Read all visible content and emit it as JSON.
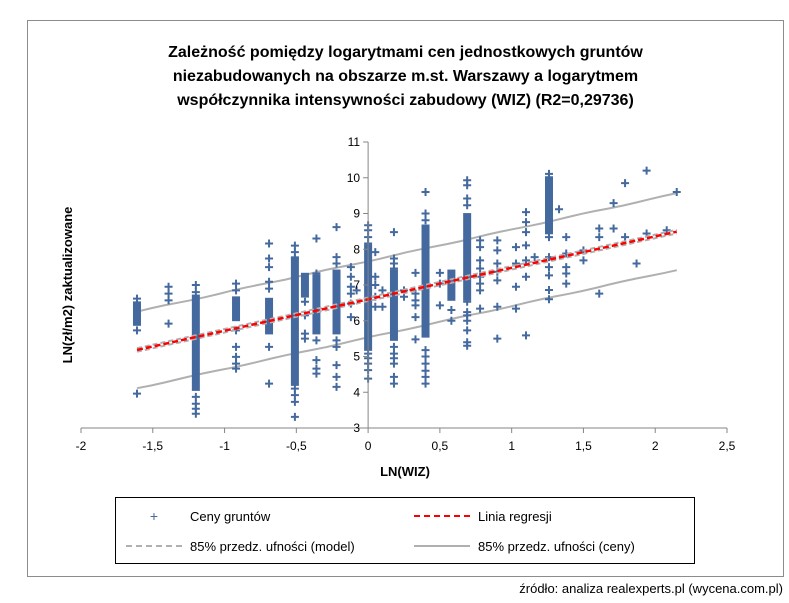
{
  "chart_data": {
    "type": "scatter",
    "title": [
      "Zależność pomiędzy logarytmami cen jednostkowych gruntów",
      "niezabudowanych na obszarze m.st. Warszawy a logarytmem",
      "współczynnika intensywności zabudowy (WIZ) (R2=0,29736)"
    ],
    "xlabel": "LN(WIZ)",
    "ylabel": "LN(zł/m2)  zaktualizowane",
    "xlim": [
      -2,
      2.5
    ],
    "ylim": [
      3,
      11
    ],
    "x_ticks": [
      -2,
      -1.5,
      -1,
      -0.5,
      0,
      0.5,
      1,
      1.5,
      2,
      2.5
    ],
    "x_tick_labels": [
      "-2",
      "-1,5",
      "-1",
      "-0,5",
      "0",
      "0,5",
      "1",
      "1,5",
      "2",
      "2,5"
    ],
    "y_ticks": [
      3,
      4,
      5,
      6,
      7,
      8,
      9,
      10,
      11
    ],
    "y_tick_labels": [
      "3",
      "4",
      "5",
      "6",
      "7",
      "8",
      "9",
      "10",
      "11"
    ],
    "grid": false,
    "regression": {
      "slope": 0.88,
      "intercept": 6.6,
      "x_range": [
        -1.61,
        2.15
      ]
    },
    "model_band_halfwidth": 0.05,
    "price_band_halfwidth": 1.07,
    "series_colors": {
      "points": "#44699e",
      "regression": "#ff0000",
      "model_band": "#b0b0b0",
      "price_band": "#b0b0b0"
    },
    "columns": [
      {
        "x": -1.61,
        "range": [
          5.97,
          6.43
        ],
        "y": [
          6.62,
          5.73,
          3.96
        ]
      },
      {
        "x": -1.39,
        "range": null,
        "y": [
          6.95,
          6.76,
          6.57,
          5.92
        ]
      },
      {
        "x": -1.2,
        "range": [
          4.15,
          6.62
        ],
        "y": [
          7.0,
          6.8,
          3.87,
          3.68,
          3.54,
          3.4
        ]
      },
      {
        "x": -0.92,
        "range": [
          6.1,
          6.57
        ],
        "y": [
          7.04,
          6.85,
          5.73,
          5.27,
          4.99,
          4.8,
          4.66
        ]
      },
      {
        "x": -0.69,
        "range": [
          5.73,
          6.53
        ],
        "y": [
          8.16,
          7.74,
          7.5,
          7.09,
          6.9,
          5.27,
          4.24
        ]
      },
      {
        "x": -0.51,
        "range": [
          4.29,
          7.69
        ],
        "y": [
          8.1,
          7.92,
          7.74,
          4.1,
          3.92,
          3.73,
          3.31
        ]
      },
      {
        "x": -0.44,
        "range": [
          6.76,
          7.23
        ],
        "y": [
          6.53,
          6.15,
          5.64,
          5.5
        ]
      },
      {
        "x": -0.36,
        "range": [
          5.73,
          7.18
        ],
        "y": [
          8.3,
          7.32,
          5.45,
          4.9,
          4.66,
          4.52
        ]
      },
      {
        "x": -0.22,
        "range": [
          5.73,
          7.32
        ],
        "y": [
          8.62,
          7.78,
          7.6,
          5.45,
          5.27,
          4.76,
          4.43,
          4.15
        ]
      },
      {
        "x": -0.12,
        "range": null,
        "y": [
          7.5,
          7.23,
          6.95,
          6.76,
          6.48,
          6.1
        ]
      },
      {
        "x": -0.08,
        "range": null,
        "y": [
          6.85
        ]
      },
      {
        "x": 0.0,
        "range": [
          5.27,
          8.02
        ],
        "y": [
          8.67,
          8.53,
          8.34,
          8.16,
          5.08,
          4.95,
          4.8,
          4.62,
          4.38
        ]
      },
      {
        "x": 0.05,
        "range": null,
        "y": [
          7.92,
          7.23,
          7.0,
          6.67,
          6.39
        ]
      },
      {
        "x": 0.1,
        "range": null,
        "y": [
          6.85,
          6.39
        ]
      },
      {
        "x": 0.18,
        "range": [
          5.55,
          7.32
        ],
        "y": [
          8.48,
          7.74,
          7.6,
          7.46,
          5.27,
          5.08,
          4.95,
          4.8,
          4.43,
          4.24
        ]
      },
      {
        "x": 0.25,
        "range": null,
        "y": [
          6.85,
          6.67
        ]
      },
      {
        "x": 0.33,
        "range": null,
        "y": [
          7.34,
          6.76,
          6.57,
          6.43,
          6.1,
          5.48
        ]
      },
      {
        "x": 0.4,
        "range": [
          5.64,
          8.58
        ],
        "y": [
          9.6,
          9.0,
          8.81,
          5.18,
          5.0,
          4.8,
          4.6,
          4.43,
          4.24
        ]
      },
      {
        "x": 0.5,
        "range": null,
        "y": [
          7.34,
          7.04,
          6.43
        ]
      },
      {
        "x": 0.58,
        "range": [
          6.67,
          7.32
        ],
        "y": [
          6.3,
          6.0
        ]
      },
      {
        "x": 0.69,
        "range": [
          6.67,
          8.9
        ],
        "y": [
          9.93,
          9.79,
          9.42,
          9.23,
          6.53,
          6.24,
          6.15,
          6.0,
          5.73,
          5.4,
          5.3
        ]
      },
      {
        "x": 0.78,
        "range": null,
        "y": [
          8.25,
          8.06,
          7.69,
          7.46,
          7.23,
          7.04,
          6.85,
          6.34
        ]
      },
      {
        "x": 0.9,
        "range": null,
        "y": [
          8.25,
          7.97,
          7.6,
          7.37,
          7.13,
          6.39,
          5.5
        ]
      },
      {
        "x": 1.03,
        "range": null,
        "y": [
          8.06,
          7.6,
          6.95,
          6.34
        ]
      },
      {
        "x": 1.1,
        "range": null,
        "y": [
          9.04,
          8.76,
          8.48,
          8.11,
          7.69,
          7.23,
          5.59
        ]
      },
      {
        "x": 1.16,
        "range": null,
        "y": [
          7.78
        ]
      },
      {
        "x": 1.26,
        "range": [
          8.53,
          9.93
        ],
        "y": [
          10.11,
          8.34,
          7.78,
          7.5,
          7.27,
          6.86,
          6.6
        ]
      },
      {
        "x": 1.33,
        "range": null,
        "y": [
          9.12
        ]
      },
      {
        "x": 1.38,
        "range": null,
        "y": [
          8.34,
          7.88,
          7.5,
          7.32,
          7.04
        ]
      },
      {
        "x": 1.5,
        "range": null,
        "y": [
          7.97,
          7.69
        ]
      },
      {
        "x": 1.61,
        "range": null,
        "y": [
          8.58,
          8.34,
          6.76
        ]
      },
      {
        "x": 1.71,
        "range": null,
        "y": [
          9.29,
          8.58
        ]
      },
      {
        "x": 1.79,
        "range": null,
        "y": [
          9.85,
          8.34
        ]
      },
      {
        "x": 1.87,
        "range": null,
        "y": [
          7.6
        ]
      },
      {
        "x": 1.94,
        "range": null,
        "y": [
          10.2,
          8.44
        ]
      },
      {
        "x": 2.08,
        "range": null,
        "y": [
          8.53
        ]
      },
      {
        "x": 2.15,
        "range": null,
        "y": [
          9.6
        ]
      }
    ],
    "legend": {
      "position": "bottom",
      "entries": [
        "Ceny gruntów",
        "Linia regresji",
        "85% przedz. ufności (model)",
        "85% przedz. ufności (ceny)"
      ]
    }
  },
  "source": "źródło: analiza realexperts.pl (wycena.com.pl)"
}
